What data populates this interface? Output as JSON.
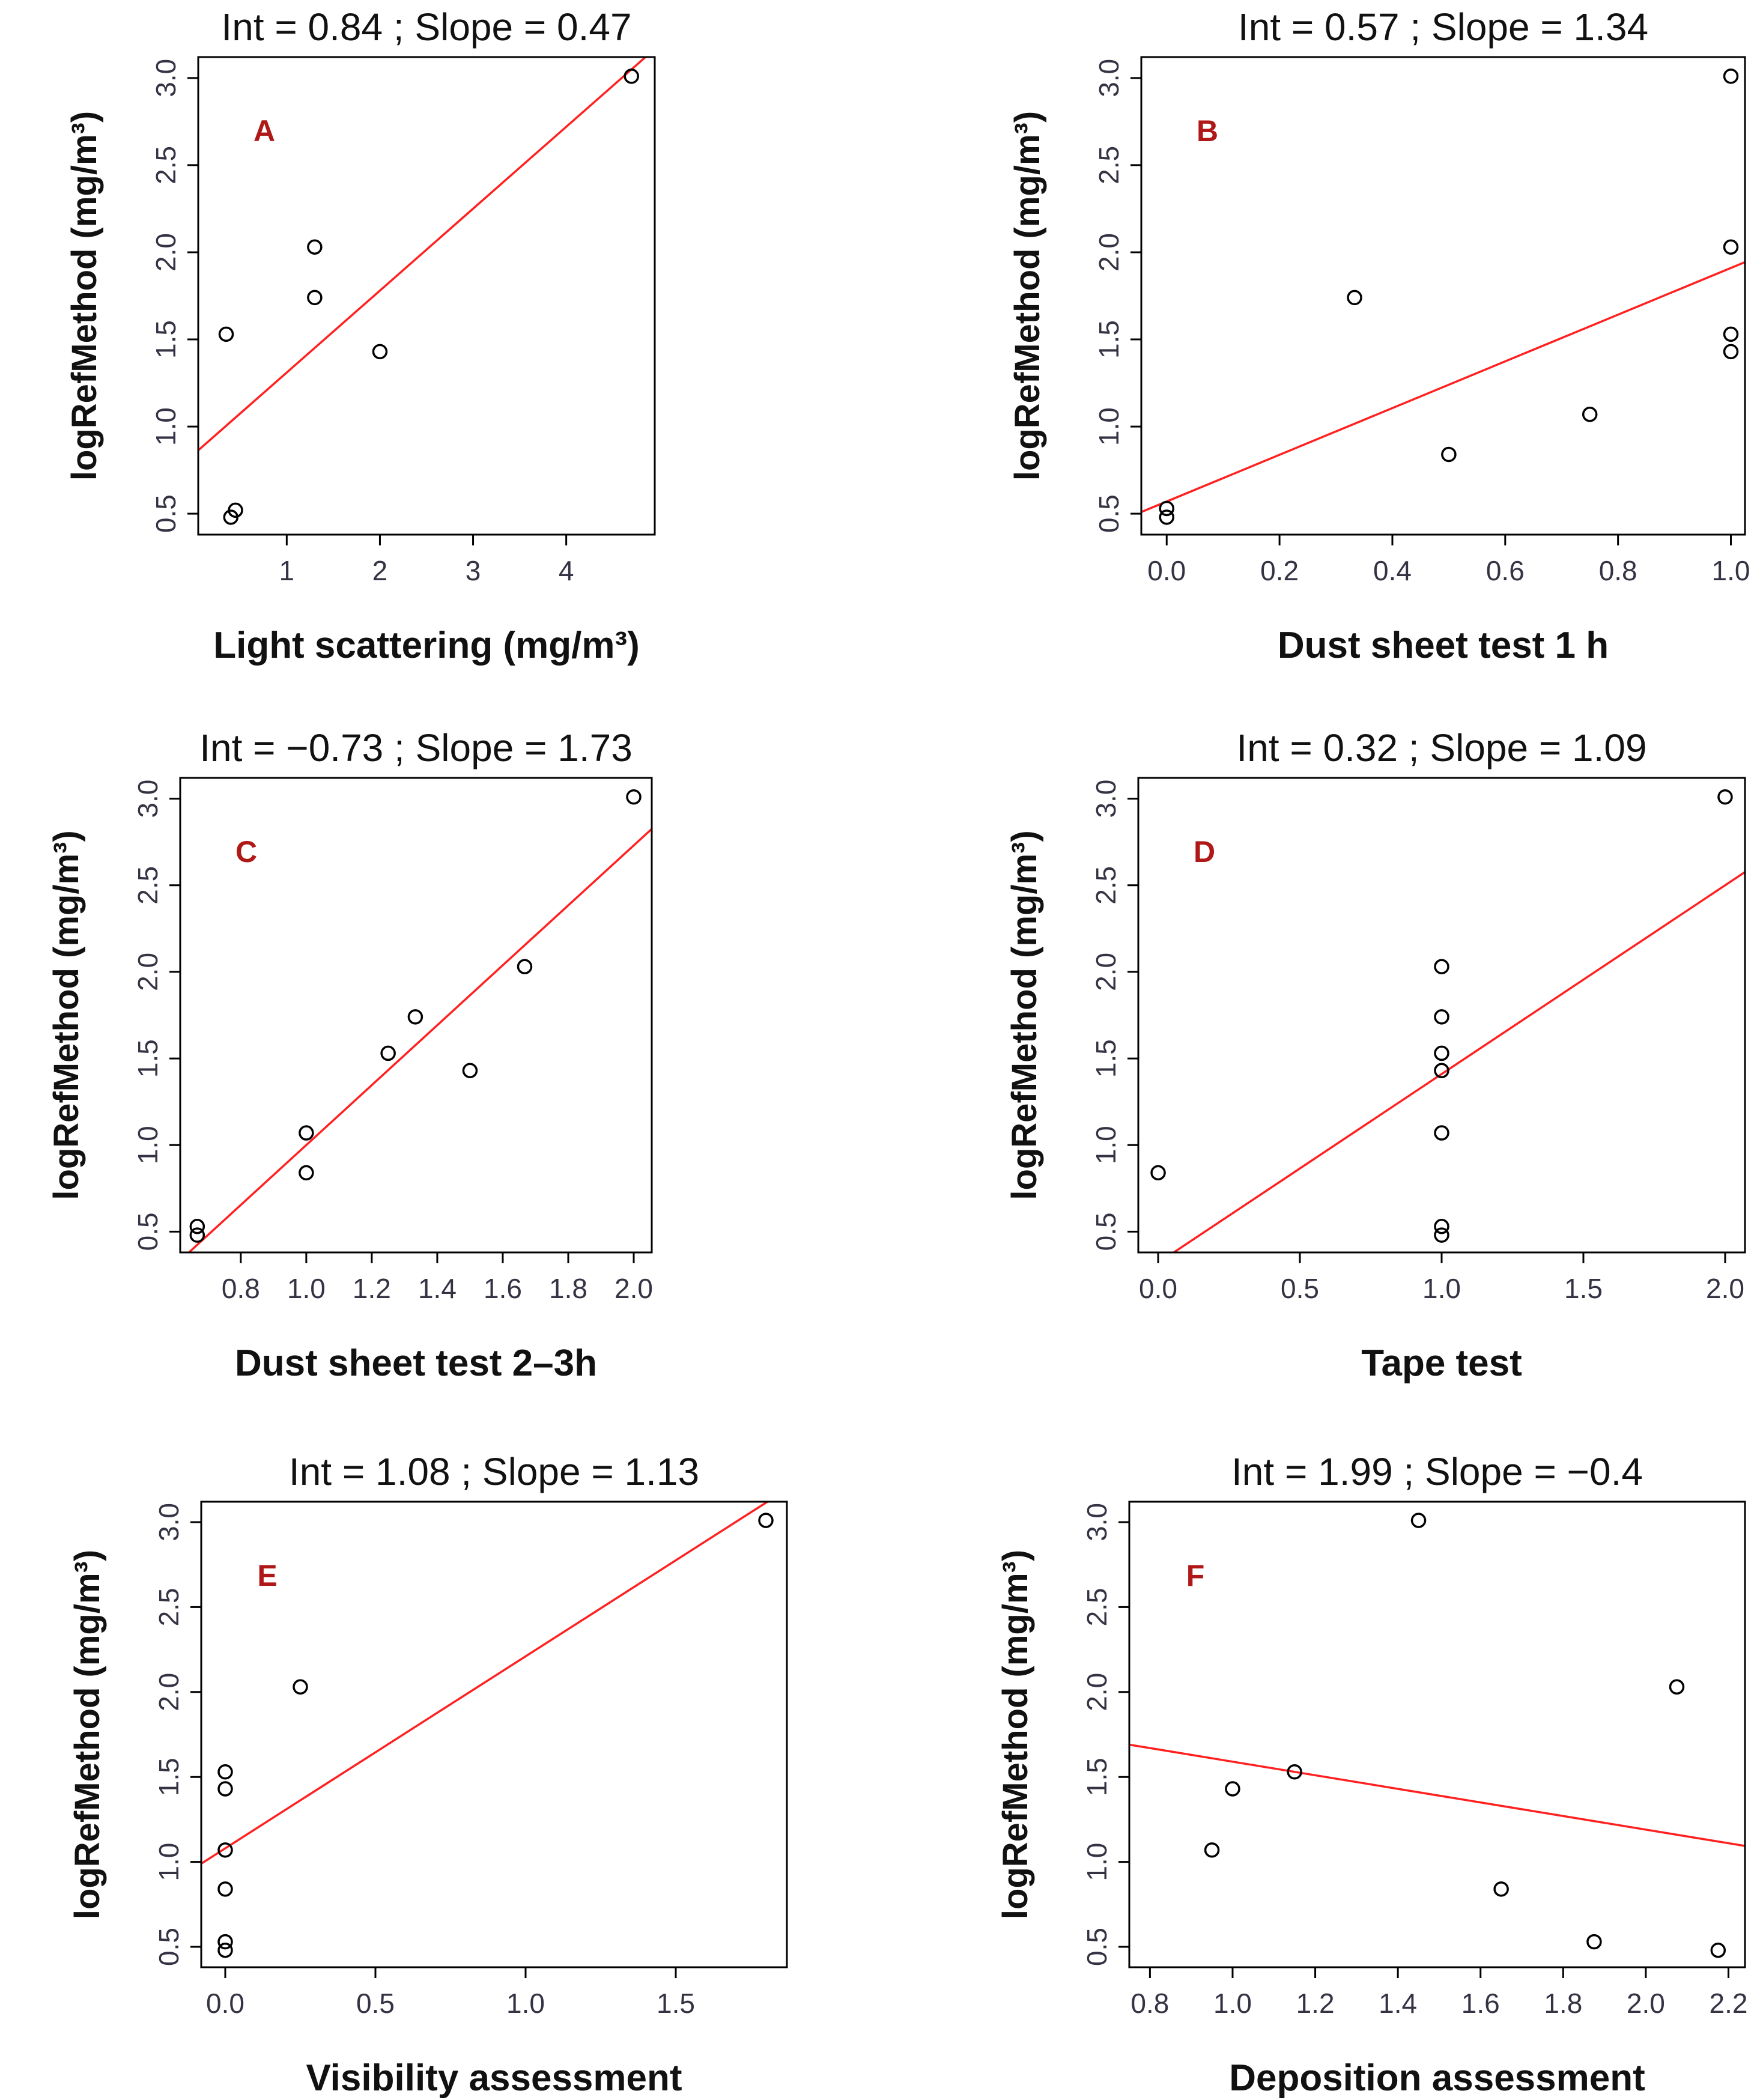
{
  "figure": {
    "fit_color": "#ff2020",
    "letter_color": "#b01818",
    "point_color": "#000000"
  },
  "chart_data": [
    {
      "id": "A",
      "type": "scatter",
      "letter": "A",
      "title": "Int = 0.84 ; Slope = 0.47",
      "xlabel": "Light scattering (mg/m³)",
      "ylabel": "logRefMethod (mg/m³)",
      "xlim": [
        0.05,
        4.95
      ],
      "ylim": [
        0.38,
        3.12
      ],
      "xticks": [
        1,
        2,
        3,
        4
      ],
      "xtick_labels": [
        "1",
        "2",
        "3",
        "4"
      ],
      "yticks": [
        0.5,
        1.0,
        1.5,
        2.0,
        2.5,
        3.0
      ],
      "ytick_labels": [
        "0.5",
        "1.0",
        "1.5",
        "2.0",
        "2.5",
        "3.0"
      ],
      "fit": {
        "intercept": 0.84,
        "slope": 0.47
      },
      "points": {
        "x": [
          0.35,
          0.4,
          0.45,
          1.3,
          1.3,
          2.0,
          4.7
        ],
        "y": [
          1.53,
          0.48,
          0.52,
          2.03,
          1.74,
          1.43,
          3.01
        ]
      }
    },
    {
      "id": "B",
      "type": "scatter",
      "letter": "B",
      "title": "Int = 0.57 ; Slope = 1.34",
      "xlabel": "Dust sheet test 1 h",
      "ylabel": "logRefMethod (mg/m³)",
      "xlim": [
        -0.045,
        1.025
      ],
      "ylim": [
        0.38,
        3.12
      ],
      "xticks": [
        0.0,
        0.2,
        0.4,
        0.6,
        0.8,
        1.0
      ],
      "xtick_labels": [
        "0.0",
        "0.2",
        "0.4",
        "0.6",
        "0.8",
        "1.0"
      ],
      "yticks": [
        0.5,
        1.0,
        1.5,
        2.0,
        2.5,
        3.0
      ],
      "ytick_labels": [
        "0.5",
        "1.0",
        "1.5",
        "2.0",
        "2.5",
        "3.0"
      ],
      "fit": {
        "intercept": 0.57,
        "slope": 1.34
      },
      "points": {
        "x": [
          0.0,
          0.0,
          0.333,
          0.5,
          0.75,
          1.0,
          1.0,
          1.0,
          1.0
        ],
        "y": [
          0.53,
          0.48,
          1.74,
          0.84,
          1.07,
          3.01,
          2.03,
          1.53,
          1.43
        ]
      }
    },
    {
      "id": "C",
      "type": "scatter",
      "letter": "C",
      "title": "Int = −0.73 ; Slope = 1.73",
      "xlabel": "Dust sheet test 2–3h",
      "ylabel": "logRefMethod (mg/m³)",
      "xlim": [
        0.615,
        2.055
      ],
      "ylim": [
        0.38,
        3.12
      ],
      "xticks": [
        0.8,
        1.0,
        1.2,
        1.4,
        1.6,
        1.8,
        2.0
      ],
      "xtick_labels": [
        "0.8",
        "1.0",
        "1.2",
        "1.4",
        "1.6",
        "1.8",
        "2.0"
      ],
      "yticks": [
        0.5,
        1.0,
        1.5,
        2.0,
        2.5,
        3.0
      ],
      "ytick_labels": [
        "0.5",
        "1.0",
        "1.5",
        "2.0",
        "2.5",
        "3.0"
      ],
      "fit": {
        "intercept": -0.73,
        "slope": 1.73
      },
      "points": {
        "x": [
          0.667,
          0.667,
          1.0,
          1.0,
          1.25,
          1.333,
          1.5,
          1.667,
          2.0
        ],
        "y": [
          0.53,
          0.48,
          1.07,
          0.84,
          1.53,
          1.74,
          1.43,
          2.03,
          3.01
        ]
      }
    },
    {
      "id": "D",
      "type": "scatter",
      "letter": "D",
      "title": "Int = 0.32 ; Slope = 1.09",
      "xlabel": "Tape test",
      "ylabel": "logRefMethod (mg/m³)",
      "xlim": [
        -0.07,
        2.07
      ],
      "ylim": [
        0.38,
        3.12
      ],
      "xticks": [
        0.0,
        0.5,
        1.0,
        1.5,
        2.0
      ],
      "xtick_labels": [
        "0.0",
        "0.5",
        "1.0",
        "1.5",
        "2.0"
      ],
      "yticks": [
        0.5,
        1.0,
        1.5,
        2.0,
        2.5,
        3.0
      ],
      "ytick_labels": [
        "0.5",
        "1.0",
        "1.5",
        "2.0",
        "2.5",
        "3.0"
      ],
      "fit": {
        "intercept": 0.32,
        "slope": 1.09
      },
      "points": {
        "x": [
          0.0,
          1.0,
          1.0,
          1.0,
          1.0,
          1.0,
          1.0,
          1.0,
          2.0
        ],
        "y": [
          0.84,
          2.03,
          1.74,
          1.53,
          1.43,
          1.07,
          0.53,
          0.48,
          3.01
        ]
      }
    },
    {
      "id": "E",
      "type": "scatter",
      "letter": "E",
      "title": "Int = 1.08 ; Slope = 1.13",
      "xlabel": "Visibility assessment",
      "ylabel": "logRefMethod (mg/m³)",
      "xlim": [
        -0.08,
        1.87
      ],
      "ylim": [
        0.38,
        3.12
      ],
      "xticks": [
        0.0,
        0.5,
        1.0,
        1.5
      ],
      "xtick_labels": [
        "0.0",
        "0.5",
        "1.0",
        "1.5"
      ],
      "yticks": [
        0.5,
        1.0,
        1.5,
        2.0,
        2.5,
        3.0
      ],
      "ytick_labels": [
        "0.5",
        "1.0",
        "1.5",
        "2.0",
        "2.5",
        "3.0"
      ],
      "fit": {
        "intercept": 1.08,
        "slope": 1.13
      },
      "points": {
        "x": [
          0.0,
          0.0,
          0.0,
          0.0,
          0.0,
          0.0,
          0.25,
          1.8
        ],
        "y": [
          1.53,
          1.43,
          1.07,
          0.84,
          0.53,
          0.48,
          2.03,
          3.01
        ]
      }
    },
    {
      "id": "F",
      "type": "scatter",
      "letter": "F",
      "title": "Int = 1.99 ; Slope = −0.4",
      "xlabel": "Deposition assessment",
      "ylabel": "logRefMethod (mg/m³)",
      "xlim": [
        0.75,
        2.24
      ],
      "ylim": [
        0.38,
        3.12
      ],
      "xticks": [
        0.8,
        1.0,
        1.2,
        1.4,
        1.6,
        1.8,
        2.0,
        2.2
      ],
      "xtick_labels": [
        "0.8",
        "1.0",
        "1.2",
        "1.4",
        "1.6",
        "1.8",
        "2.0",
        "2.2"
      ],
      "yticks": [
        0.5,
        1.0,
        1.5,
        2.0,
        2.5,
        3.0
      ],
      "ytick_labels": [
        "0.5",
        "1.0",
        "1.5",
        "2.0",
        "2.5",
        "3.0"
      ],
      "fit": {
        "intercept": 1.99,
        "slope": -0.4
      },
      "points": {
        "x": [
          0.95,
          1.0,
          1.15,
          1.45,
          1.65,
          1.875,
          2.075,
          2.175
        ],
        "y": [
          1.07,
          1.43,
          1.53,
          3.01,
          0.84,
          0.53,
          2.03,
          0.48
        ]
      }
    }
  ]
}
